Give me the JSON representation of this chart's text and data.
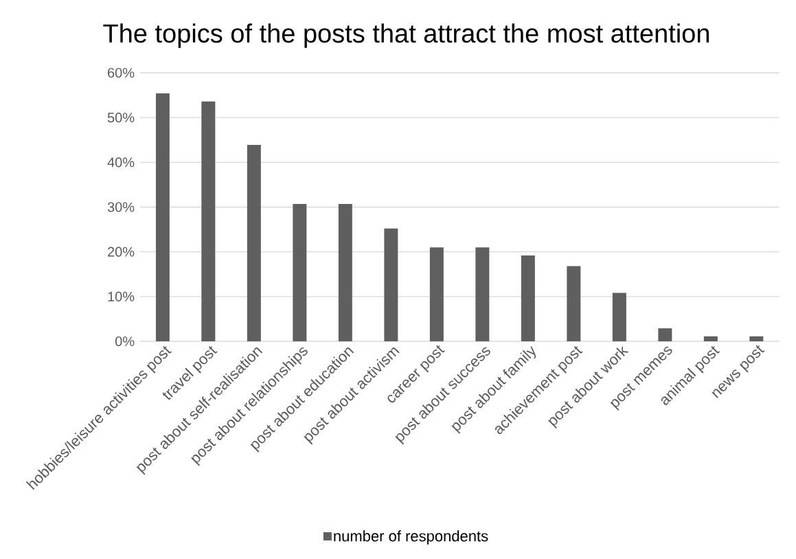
{
  "chart_data": {
    "type": "bar",
    "title": "The topics of the posts that attract the most attention",
    "categories": [
      "hobbies/leisure activities post",
      "travel post",
      "post about self-realisation",
      "post about relationships",
      "post about education",
      "post about activism",
      "career post",
      "post about success",
      "post about family",
      "achievement post",
      "post about work",
      "post memes",
      "animal post",
      "news post"
    ],
    "series": [
      {
        "name": "number of respondents",
        "color": "#5f5f5f",
        "values": [
          55.4,
          53.6,
          43.9,
          30.7,
          30.7,
          25.2,
          21.0,
          21.0,
          19.2,
          16.8,
          10.8,
          2.9,
          1.1,
          1.1
        ]
      }
    ],
    "ylim": [
      0,
      60
    ],
    "yticks": [
      {
        "value": 0,
        "label": "0%"
      },
      {
        "value": 10,
        "label": "10%"
      },
      {
        "value": 20,
        "label": "20%"
      },
      {
        "value": 30,
        "label": "30%"
      },
      {
        "value": 40,
        "label": "40%"
      },
      {
        "value": 50,
        "label": "50%"
      },
      {
        "value": 60,
        "label": "60%"
      }
    ],
    "grid": "y",
    "legend": "bottom"
  }
}
